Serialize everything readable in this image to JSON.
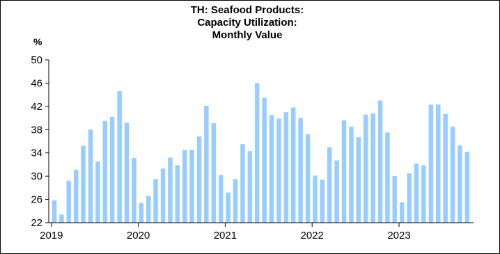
{
  "chart_data": {
    "type": "bar",
    "title_lines": [
      "TH: Seafood Products:",
      "Capacity Utilization:",
      "Monthly Value"
    ],
    "ylabel": "%",
    "ylim": [
      22,
      50
    ],
    "yticks": [
      22,
      26,
      30,
      34,
      38,
      42,
      46,
      50
    ],
    "x_tick_labels": [
      "2019",
      "2020",
      "2021",
      "2022",
      "2023"
    ],
    "grid": false,
    "bar_color": "#99ccff",
    "series": [
      {
        "values": [
          25.8,
          23.4,
          29.2,
          31.1,
          35.2,
          38.0,
          32.5,
          39.5,
          40.2,
          44.6,
          39.2,
          33.1,
          25.4,
          26.6,
          29.5,
          31.3,
          33.2,
          31.9,
          34.5,
          34.5,
          36.8,
          42.1,
          39.1,
          30.2,
          27.2,
          29.5,
          35.5,
          34.3,
          46.0,
          43.5,
          40.5,
          39.9,
          41.0,
          41.8,
          40.0,
          37.2,
          30.1,
          29.4,
          35.0,
          32.7,
          39.6,
          38.5,
          36.7,
          40.6,
          40.8,
          43.0,
          37.5,
          30.0,
          25.5,
          30.5,
          32.2,
          31.9,
          42.3,
          42.3,
          40.7,
          38.5,
          35.3,
          34.2
        ]
      }
    ]
  }
}
